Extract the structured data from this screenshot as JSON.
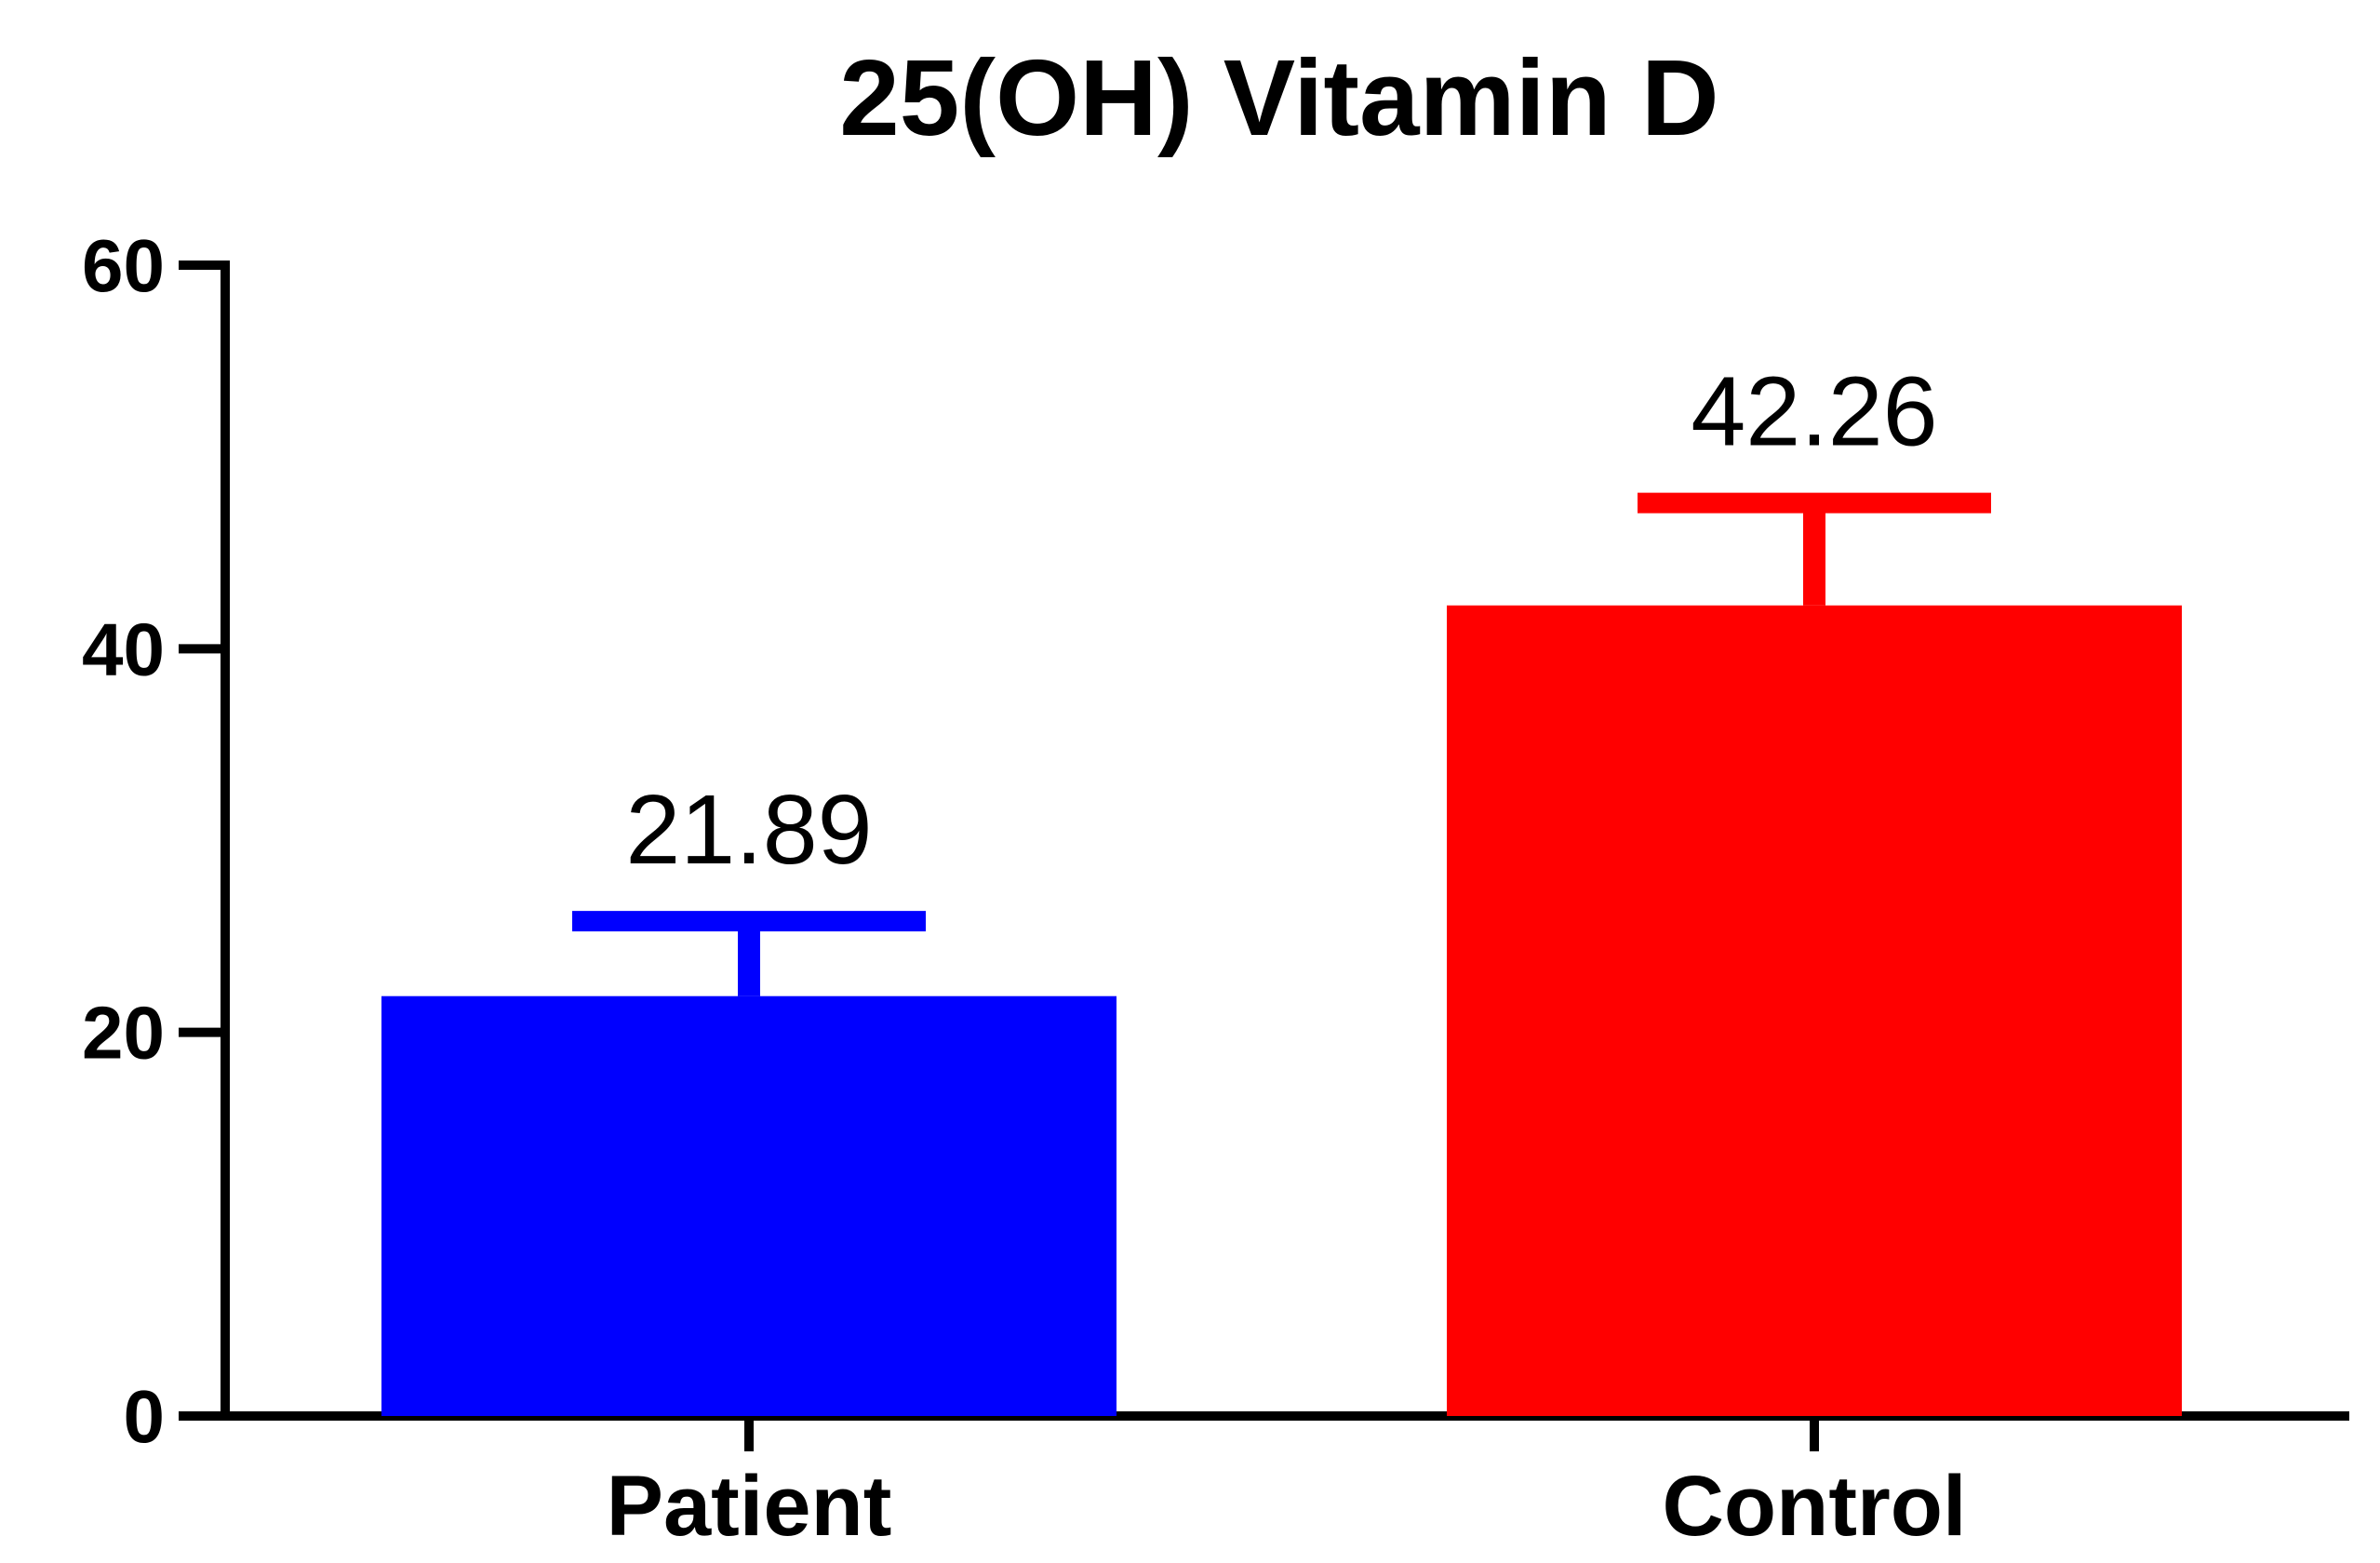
{
  "chart_data": {
    "type": "bar",
    "title": "25(OH) Vitamin D",
    "xlabel": "",
    "ylabel": "",
    "categories": [
      "Patient",
      "Control"
    ],
    "values": [
      21.89,
      42.26
    ],
    "value_labels": [
      "21.89",
      "42.26"
    ],
    "error_upper": [
      25.8,
      47.6
    ],
    "bar_colors": [
      "#0000FF",
      "#FF0000"
    ],
    "ylim": [
      0,
      60
    ],
    "yticks": [
      0,
      20,
      40,
      60
    ],
    "ytick_labels": [
      "0",
      "20",
      "40",
      "60"
    ],
    "grid": false,
    "legend": "none"
  }
}
